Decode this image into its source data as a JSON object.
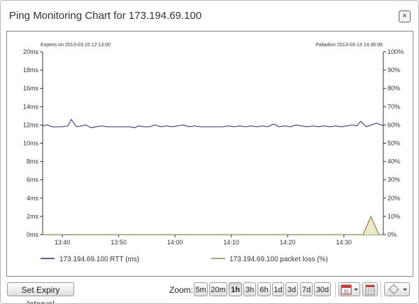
{
  "dialog": {
    "title": "Ping Monitoring Chart for 173.194.69.100",
    "close_label": "×"
  },
  "chart_meta": {
    "expires_text": "Expires on 2013-03-15 12:13:00",
    "source_text": "Palladion 2013-03-13 14:36:06"
  },
  "chart_data": {
    "type": "line",
    "x_ticks": [
      "13:40",
      "13:50",
      "14:00",
      "14:10",
      "14:20",
      "14:30"
    ],
    "x_tick_minutes": [
      40,
      50,
      60,
      70,
      80,
      90
    ],
    "xlim_minutes": [
      36.5,
      97.0
    ],
    "y_left_ticks": [
      "0ms",
      "2ms",
      "4ms",
      "6ms",
      "8ms",
      "10ms",
      "12ms",
      "14ms",
      "16ms",
      "18ms",
      "20ms"
    ],
    "y_right_ticks": [
      "0%",
      "10%",
      "20%",
      "30%",
      "40%",
      "50%",
      "60%",
      "70%",
      "80%",
      "90%",
      "100%"
    ],
    "ylim_left": [
      0,
      20
    ],
    "ylim_right": [
      0,
      100
    ],
    "grid": false,
    "legend_position": "bottom",
    "series": [
      {
        "name": "173.194.69.100 RTT (ms)",
        "axis": "left",
        "color": "#2b2a66",
        "x": [
          36.5,
          37.3,
          38.2,
          39.1,
          40.0,
          41.0,
          41.6,
          42.5,
          43.5,
          44.2,
          45.1,
          46.0,
          47.0,
          48.0,
          49.0,
          50.0,
          51.0,
          52.0,
          52.8,
          53.6,
          54.5,
          55.5,
          56.5,
          57.5,
          58.5,
          59.5,
          60.5,
          61.5,
          62.5,
          63.5,
          64.5,
          65.5,
          66.5,
          67.5,
          68.5,
          69.5,
          70.5,
          71.5,
          72.5,
          73.5,
          74.5,
          75.5,
          76.5,
          77.5,
          78.5,
          79.5,
          80.5,
          81.5,
          82.5,
          83.5,
          84.5,
          85.5,
          86.5,
          87.5,
          88.5,
          89.5,
          90.5,
          91.5,
          92.3,
          93.0,
          94.0,
          94.9,
          95.8,
          97.0
        ],
        "y": [
          11.9,
          12.0,
          11.8,
          11.8,
          11.8,
          11.9,
          12.6,
          11.8,
          11.9,
          12.0,
          11.7,
          11.8,
          11.9,
          11.8,
          11.8,
          11.8,
          11.8,
          11.8,
          11.7,
          11.9,
          11.8,
          11.8,
          12.0,
          11.8,
          11.9,
          11.8,
          11.9,
          12.0,
          11.8,
          11.9,
          11.8,
          11.8,
          11.8,
          11.8,
          11.8,
          11.9,
          11.8,
          11.9,
          11.8,
          11.9,
          11.8,
          11.9,
          11.8,
          12.1,
          11.8,
          11.9,
          11.8,
          12.0,
          11.9,
          11.8,
          11.9,
          11.8,
          11.9,
          11.8,
          11.9,
          11.8,
          11.9,
          12.0,
          11.9,
          12.4,
          11.8,
          12.0,
          12.2,
          11.9
        ]
      },
      {
        "name": "173.194.69.100 packet loss (%)",
        "axis": "right",
        "color": "#8a8455",
        "fill": "#ece8c8",
        "x": [
          36.5,
          93.4,
          94.8,
          96.2,
          97.0
        ],
        "y": [
          0,
          0,
          10,
          0,
          0
        ]
      }
    ]
  },
  "toolbar": {
    "expiry_label": "Set Expiry Interval",
    "zoom_label": "Zoom:",
    "zoom_options": [
      "5m",
      "20m",
      "1h",
      "3h",
      "6h",
      "1d",
      "3d",
      "7d",
      "30d"
    ],
    "zoom_selected": "1h",
    "calendar_day": "31",
    "icons": {
      "calendar": "calendar-icon",
      "calendar_dropdown": "chevron-down-icon",
      "calendar_grid": "calendar-grid-icon",
      "settings": "gear-icon",
      "settings_dropdown": "chevron-down-icon"
    }
  }
}
